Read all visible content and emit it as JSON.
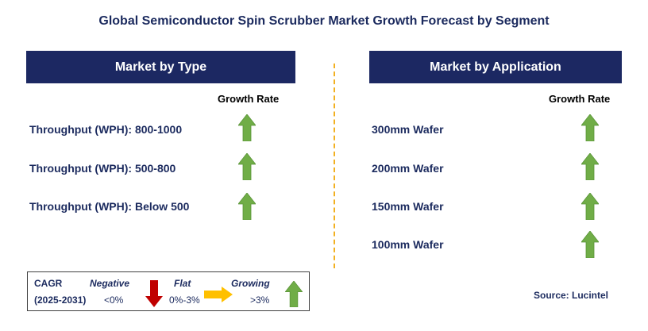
{
  "title": "Global Semiconductor Spin Scrubber Market Growth Forecast by Segment",
  "left_panel": {
    "header": "Market by Type",
    "growth_rate_label": "Growth Rate",
    "items": [
      {
        "label": "Throughput (WPH): 800-1000",
        "trend": "growing"
      },
      {
        "label": "Throughput (WPH): 500-800",
        "trend": "growing"
      },
      {
        "label": "Throughput (WPH): Below 500",
        "trend": "growing"
      }
    ]
  },
  "right_panel": {
    "header": "Market by Application",
    "growth_rate_label": "Growth Rate",
    "items": [
      {
        "label": "300mm Wafer",
        "trend": "growing"
      },
      {
        "label": "200mm Wafer",
        "trend": "growing"
      },
      {
        "label": "150mm Wafer",
        "trend": "growing"
      },
      {
        "label": "100mm Wafer",
        "trend": "growing"
      }
    ]
  },
  "legend": {
    "cagr_label": "CAGR",
    "period": "(2025-2031)",
    "negative_label": "Negative",
    "negative_value": "<0%",
    "flat_label": "Flat",
    "flat_value": "0%-3%",
    "growing_label": "Growing",
    "growing_value": ">3%"
  },
  "source": "Source: Lucintel",
  "colors": {
    "navy": "#1c2862",
    "green": "#70ad47",
    "red": "#c00000",
    "yellow": "#ffc000",
    "divider": "#f2b020"
  }
}
